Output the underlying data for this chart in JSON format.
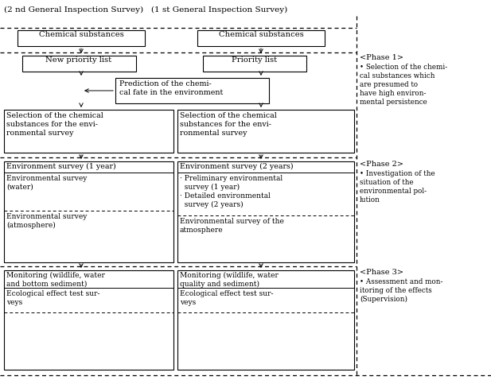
{
  "bg_color": "#ffffff",
  "fig_width": 6.17,
  "fig_height": 4.83,
  "dpi": 100,
  "title": "(2 nd General Inspection Survey)   (1 st General Inspection Survey)",
  "phase1_label": "<Phase 1>",
  "phase1_body": "• Selection of the chemi-\ncal substances which\nare presumed to\nhave high environ-\nmental persistence",
  "phase2_label": "<Phase 2>",
  "phase2_body": "• Investigation of the\nsituation of the\nenvironmental pol-\nlution",
  "phase3_label": "<Phase 3>",
  "phase3_body": "• Assessment and mon-\nitoring of the effects\n(Supervision)"
}
